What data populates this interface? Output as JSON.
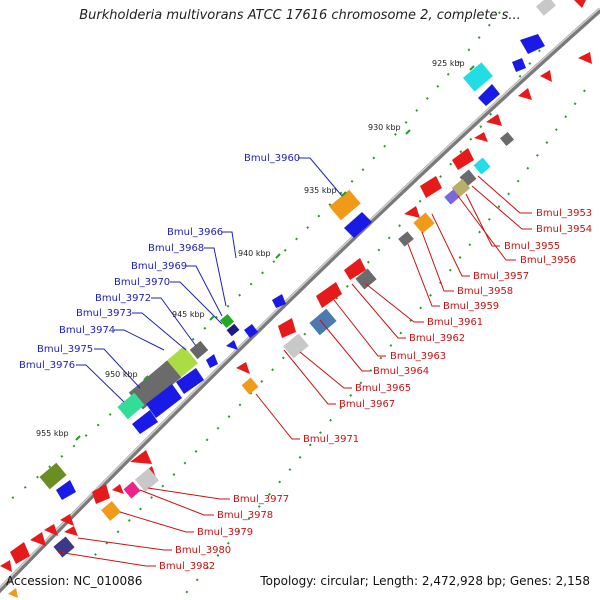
{
  "title": "Burkholderia multivorans ATCC 17616 chromosome 2, complete s...",
  "footer": {
    "accession": "Accession: NC_010086",
    "stats": "Topology: circular; Length: 2,472,928 bp; Genes: 2,158"
  },
  "kbp_ticks": [
    "925 kbp",
    "930 kbp",
    "935 kbp",
    "940 kbp",
    "945 kbp",
    "950 kbp",
    "955 kbp"
  ],
  "labels_forward": [
    "Bmul_3960",
    "Bmul_3966",
    "Bmul_3968",
    "Bmul_3969",
    "Bmul_3970",
    "Bmul_3972",
    "Bmul_3973",
    "Bmul_3974",
    "Bmul_3975",
    "Bmul_3976"
  ],
  "labels_reverse": [
    "Bmul_3953",
    "Bmul_3954",
    "Bmul_3955",
    "Bmul_3956",
    "Bmul_3957",
    "Bmul_3958",
    "Bmul_3959",
    "Bmul_3961",
    "Bmul_3962",
    "Bmul_3963",
    "Bmul_3964",
    "Bmul_3965",
    "Bmul_3967",
    "Bmul_3971",
    "Bmul_3977",
    "Bmul_3978",
    "Bmul_3979",
    "Bmul_3980",
    "Bmul_3982"
  ],
  "colors": {
    "forward_strand": "#1a1ae6",
    "reverse_strand": "#e61a1a",
    "backbone": "#808080",
    "forward_label": "#2020c0",
    "reverse_label": "#cc1111",
    "dots": "#2a9a2a"
  }
}
